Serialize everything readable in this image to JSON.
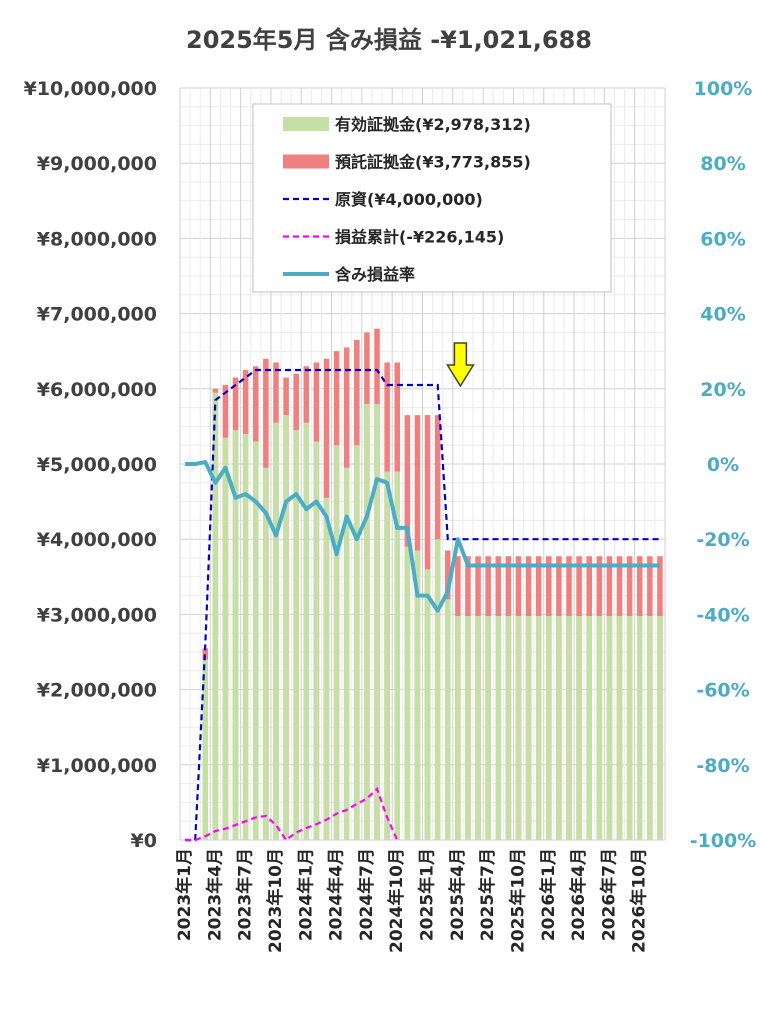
{
  "chart_data": {
    "type": "bar",
    "title": "2025年5月 含み損益 -¥1,021,688",
    "categories": [
      "2023年1月",
      "2023年2月",
      "2023年3月",
      "2023年4月",
      "2023年5月",
      "2023年6月",
      "2023年7月",
      "2023年8月",
      "2023年9月",
      "2023年10月",
      "2023年11月",
      "2023年12月",
      "2024年1月",
      "2024年2月",
      "2024年3月",
      "2024年4月",
      "2024年5月",
      "2024年6月",
      "2024年7月",
      "2024年8月",
      "2024年9月",
      "2024年10月",
      "2024年11月",
      "2024年12月",
      "2025年1月",
      "2025年2月",
      "2025年3月",
      "2025年4月",
      "2025年5月",
      "2025年6月",
      "2025年7月",
      "2025年8月",
      "2025年9月",
      "2025年10月",
      "2025年11月",
      "2025年12月",
      "2026年1月",
      "2026年2月",
      "2026年3月",
      "2026年4月",
      "2026年5月",
      "2026年6月",
      "2026年7月",
      "2026年8月",
      "2026年9月",
      "2026年10月",
      "2026年11月",
      "2026年12月"
    ],
    "x_tick_labels": [
      "2023年1月",
      "2023年4月",
      "2023年7月",
      "2023年10月",
      "2024年1月",
      "2024年4月",
      "2024年7月",
      "2024年10月",
      "2025年1月",
      "2025年4月",
      "2025年7月",
      "2025年10月",
      "2026年1月",
      "2026年4月",
      "2026年7月",
      "2026年10月"
    ],
    "y_left": {
      "ylim": [
        0,
        10000000
      ],
      "ticks": [
        "¥0",
        "¥1,000,000",
        "¥2,000,000",
        "¥3,000,000",
        "¥4,000,000",
        "¥5,000,000",
        "¥6,000,000",
        "¥7,000,000",
        "¥8,000,000",
        "¥9,000,000",
        "¥10,000,000"
      ]
    },
    "y_right": {
      "ylim": [
        -100,
        100
      ],
      "ticks": [
        "-100%",
        "-80%",
        "-60%",
        "-40%",
        "-20%",
        "0%",
        "20%",
        "40%",
        "60%",
        "80%",
        "100%"
      ]
    },
    "grid": true,
    "legend_position": "top-right",
    "series": [
      {
        "name": "有効証拠金(¥2,978,312)",
        "kind": "bar",
        "color": "#c5e0a5",
        "values": [
          0,
          0,
          2400000,
          5950000,
          5350000,
          5450000,
          5400000,
          5300000,
          4950000,
          5550000,
          5650000,
          5450000,
          5550000,
          5300000,
          4550000,
          5250000,
          4950000,
          5250000,
          5800000,
          5800000,
          4900000,
          4900000,
          3900000,
          3850000,
          3600000,
          4000000,
          3200000,
          2978312,
          2978312,
          2978312,
          2978312,
          2978312,
          2978312,
          2978312,
          2978312,
          2978312,
          2978312,
          2978312,
          2978312,
          2978312,
          2978312,
          2978312,
          2978312,
          2978312,
          2978312,
          2978312,
          2978312,
          2978312
        ]
      },
      {
        "name": "預託証拠金(¥3,773,855)",
        "kind": "bar",
        "color": "#f08080",
        "values": [
          0,
          0,
          2550000,
          6000000,
          6050000,
          6150000,
          6250000,
          6300000,
          6400000,
          6350000,
          6150000,
          6200000,
          6300000,
          6350000,
          6400000,
          6500000,
          6550000,
          6650000,
          6750000,
          6800000,
          6350000,
          6350000,
          5650000,
          5650000,
          5650000,
          5650000,
          3850000,
          3773855,
          3773855,
          3773855,
          3773855,
          3773855,
          3773855,
          3773855,
          3773855,
          3773855,
          3773855,
          3773855,
          3773855,
          3773855,
          3773855,
          3773855,
          3773855,
          3773855,
          3773855,
          3773855,
          3773855,
          3773855
        ]
      },
      {
        "name": "原資(¥4,000,000)",
        "kind": "line",
        "style": "dashed",
        "color": "#0000cc",
        "values": [
          0,
          0,
          2600000,
          5850000,
          5950000,
          6050000,
          6150000,
          6250000,
          6250000,
          6250000,
          6250000,
          6250000,
          6250000,
          6250000,
          6250000,
          6250000,
          6250000,
          6250000,
          6250000,
          6250000,
          6050000,
          6050000,
          6050000,
          6050000,
          6050000,
          6050000,
          4000000,
          4000000,
          4000000,
          4000000,
          4000000,
          4000000,
          4000000,
          4000000,
          4000000,
          4000000,
          4000000,
          4000000,
          4000000,
          4000000,
          4000000,
          4000000,
          4000000,
          4000000,
          4000000,
          4000000,
          4000000,
          4000000
        ]
      },
      {
        "name": "損益累計(-¥226,145)",
        "kind": "line",
        "style": "dashed",
        "color": "#ff00ff",
        "values": [
          0,
          0,
          50000,
          120000,
          150000,
          200000,
          250000,
          300000,
          320000,
          200000,
          0,
          100000,
          160000,
          210000,
          270000,
          350000,
          400000,
          480000,
          550000,
          680000,
          300000,
          0,
          null,
          null,
          null,
          null,
          null,
          null,
          null,
          null,
          null,
          null,
          null,
          null,
          null,
          null,
          null,
          null,
          null,
          null,
          null,
          null,
          null,
          null,
          null,
          null,
          null,
          null
        ]
      },
      {
        "name": "含み損益率",
        "kind": "line",
        "axis": "right",
        "color": "#4bacc6",
        "values": [
          0,
          0,
          0.5,
          -5,
          -1,
          -9,
          -8,
          -10,
          -13,
          -19,
          -10,
          -8,
          -12,
          -10,
          -14,
          -24,
          -14,
          -20,
          -14,
          -4,
          -5,
          -17,
          -17,
          -35,
          -35,
          -39,
          -34,
          -20,
          -27,
          -27,
          -27,
          -27,
          -27,
          -27,
          -27,
          -27,
          -27,
          -27,
          -27,
          -27,
          -27,
          -27,
          -27,
          -27,
          -27,
          -27,
          -27,
          -27
        ]
      }
    ],
    "annotation": {
      "type": "arrow",
      "color": "#ffff00",
      "at_category": "2025年4月"
    }
  }
}
